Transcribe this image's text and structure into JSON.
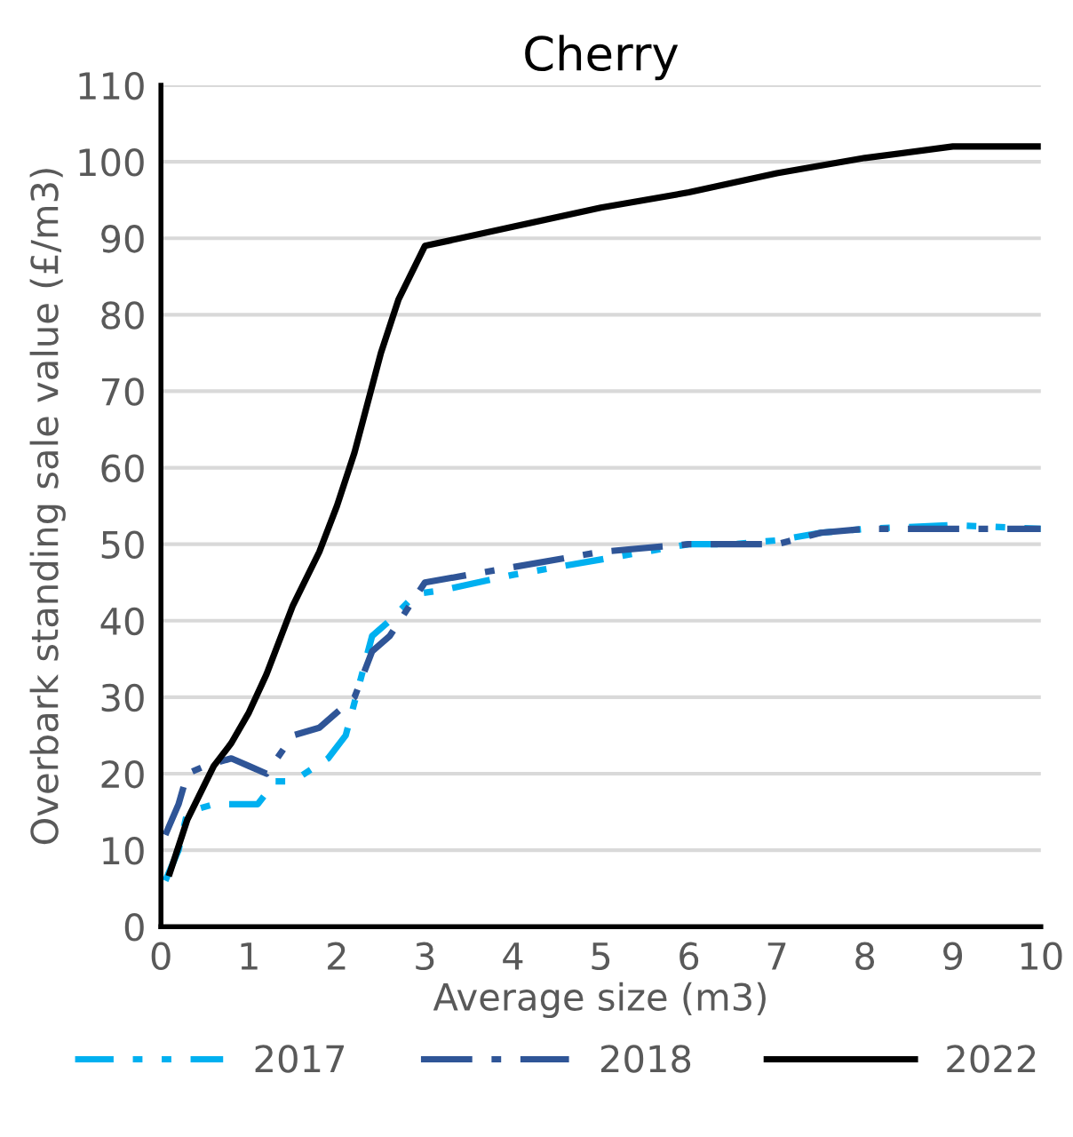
{
  "chart_data": {
    "type": "line",
    "title": "Cherry",
    "xlabel": "Average size (m3)",
    "ylabel": "Overbark standing sale value (£/m3)",
    "xlim": [
      0,
      10
    ],
    "xticks": [
      0,
      1,
      2,
      3,
      4,
      5,
      6,
      7,
      8,
      9,
      10
    ],
    "ylim": [
      0,
      110
    ],
    "yticks": [
      0,
      10,
      20,
      30,
      40,
      50,
      60,
      70,
      80,
      90,
      100,
      110
    ],
    "grid": "y",
    "legend": "bottom",
    "series": [
      {
        "name": "2017",
        "color": "#00b0f0",
        "line_style": "dotted",
        "x": [
          0.05,
          0.2,
          0.3,
          0.6,
          1.0,
          1.1,
          1.3,
          1.5,
          1.9,
          2.1,
          2.4,
          2.6,
          2.9,
          3.2,
          4,
          5,
          5.5,
          6,
          6.5,
          7,
          7.5,
          8,
          9,
          10
        ],
        "values": [
          6,
          10,
          15,
          16,
          16,
          16,
          19,
          19,
          22,
          25,
          38,
          40,
          43.5,
          44,
          46,
          48,
          49,
          50,
          50,
          50.5,
          51.5,
          52,
          52.5,
          52
        ]
      },
      {
        "name": "2018",
        "color": "#2f5597",
        "line_style": "dashed",
        "x": [
          0.05,
          0.2,
          0.3,
          0.5,
          0.8,
          1.0,
          1.2,
          1.5,
          1.8,
          2.0,
          2.2,
          2.4,
          2.6,
          3.0,
          3.5,
          4,
          5,
          6,
          7,
          7.5,
          8,
          9,
          10
        ],
        "values": [
          12,
          16,
          20,
          21,
          22,
          21,
          20,
          25,
          26,
          28,
          30,
          36,
          38,
          45,
          46,
          47,
          49,
          50,
          50,
          51.5,
          52,
          52,
          52
        ]
      },
      {
        "name": "2022",
        "color": "#000000",
        "line_style": "solid",
        "x": [
          0.1,
          0.3,
          0.6,
          0.8,
          1.0,
          1.2,
          1.5,
          1.8,
          2.0,
          2.2,
          2.5,
          2.7,
          3.0,
          4,
          5,
          6,
          7,
          8,
          9,
          10
        ],
        "values": [
          7,
          14,
          21,
          24,
          28,
          33,
          42,
          49,
          55,
          62,
          75,
          82,
          89,
          91.5,
          94,
          96,
          98.5,
          100.5,
          102,
          102
        ]
      }
    ]
  }
}
